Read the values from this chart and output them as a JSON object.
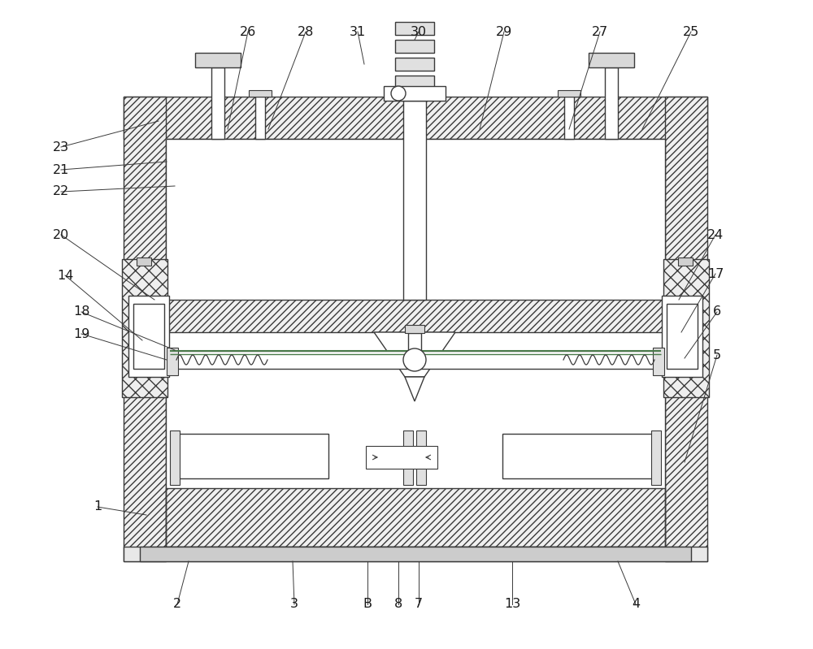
{
  "bg_color": "#ffffff",
  "lc": "#3a3a3a",
  "lw": 1.0,
  "fig_w": 10.0,
  "fig_h": 7.99,
  "dpi": 100
}
